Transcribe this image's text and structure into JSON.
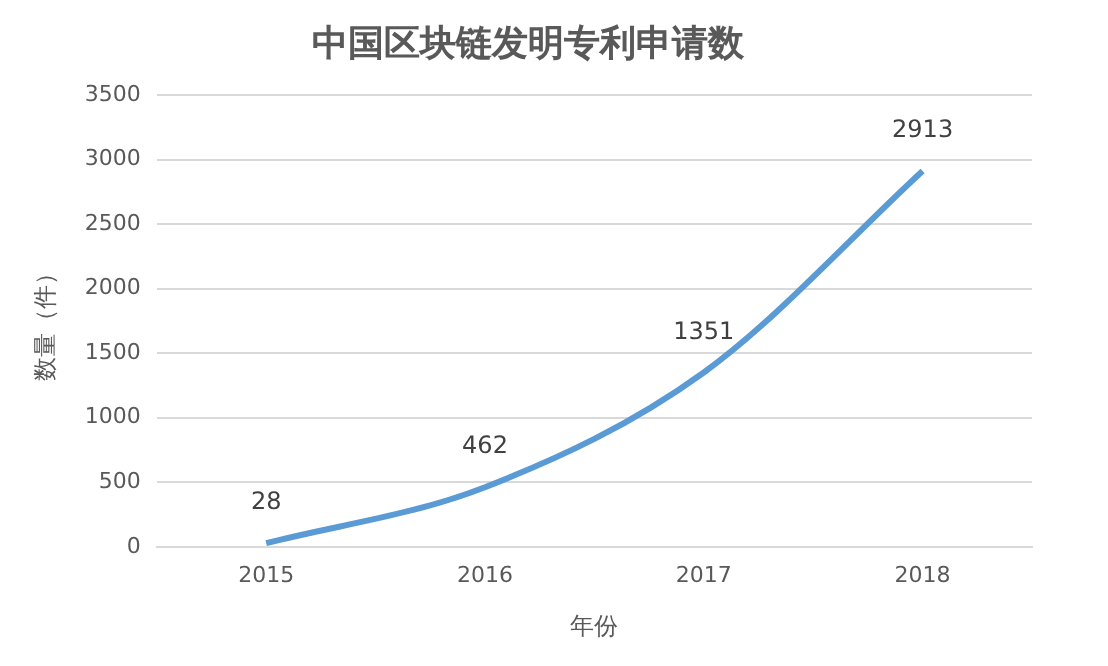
{
  "chart_data": {
    "type": "line",
    "title": "中国区块链发明专利申请数",
    "xlabel": "年份",
    "ylabel": "数量（件）",
    "categories": [
      "2015",
      "2016",
      "2017",
      "2018"
    ],
    "series": [
      {
        "color": "#5b9bd5",
        "values": [
          28,
          462,
          1351,
          2913
        ]
      }
    ],
    "ylim": [
      0,
      3500
    ],
    "yticks": [
      0,
      500,
      1000,
      1500,
      2000,
      2500,
      3000,
      3500
    ],
    "grid": "y",
    "legend": false,
    "data_labels": true,
    "marker": "none",
    "line_style": "solid"
  }
}
